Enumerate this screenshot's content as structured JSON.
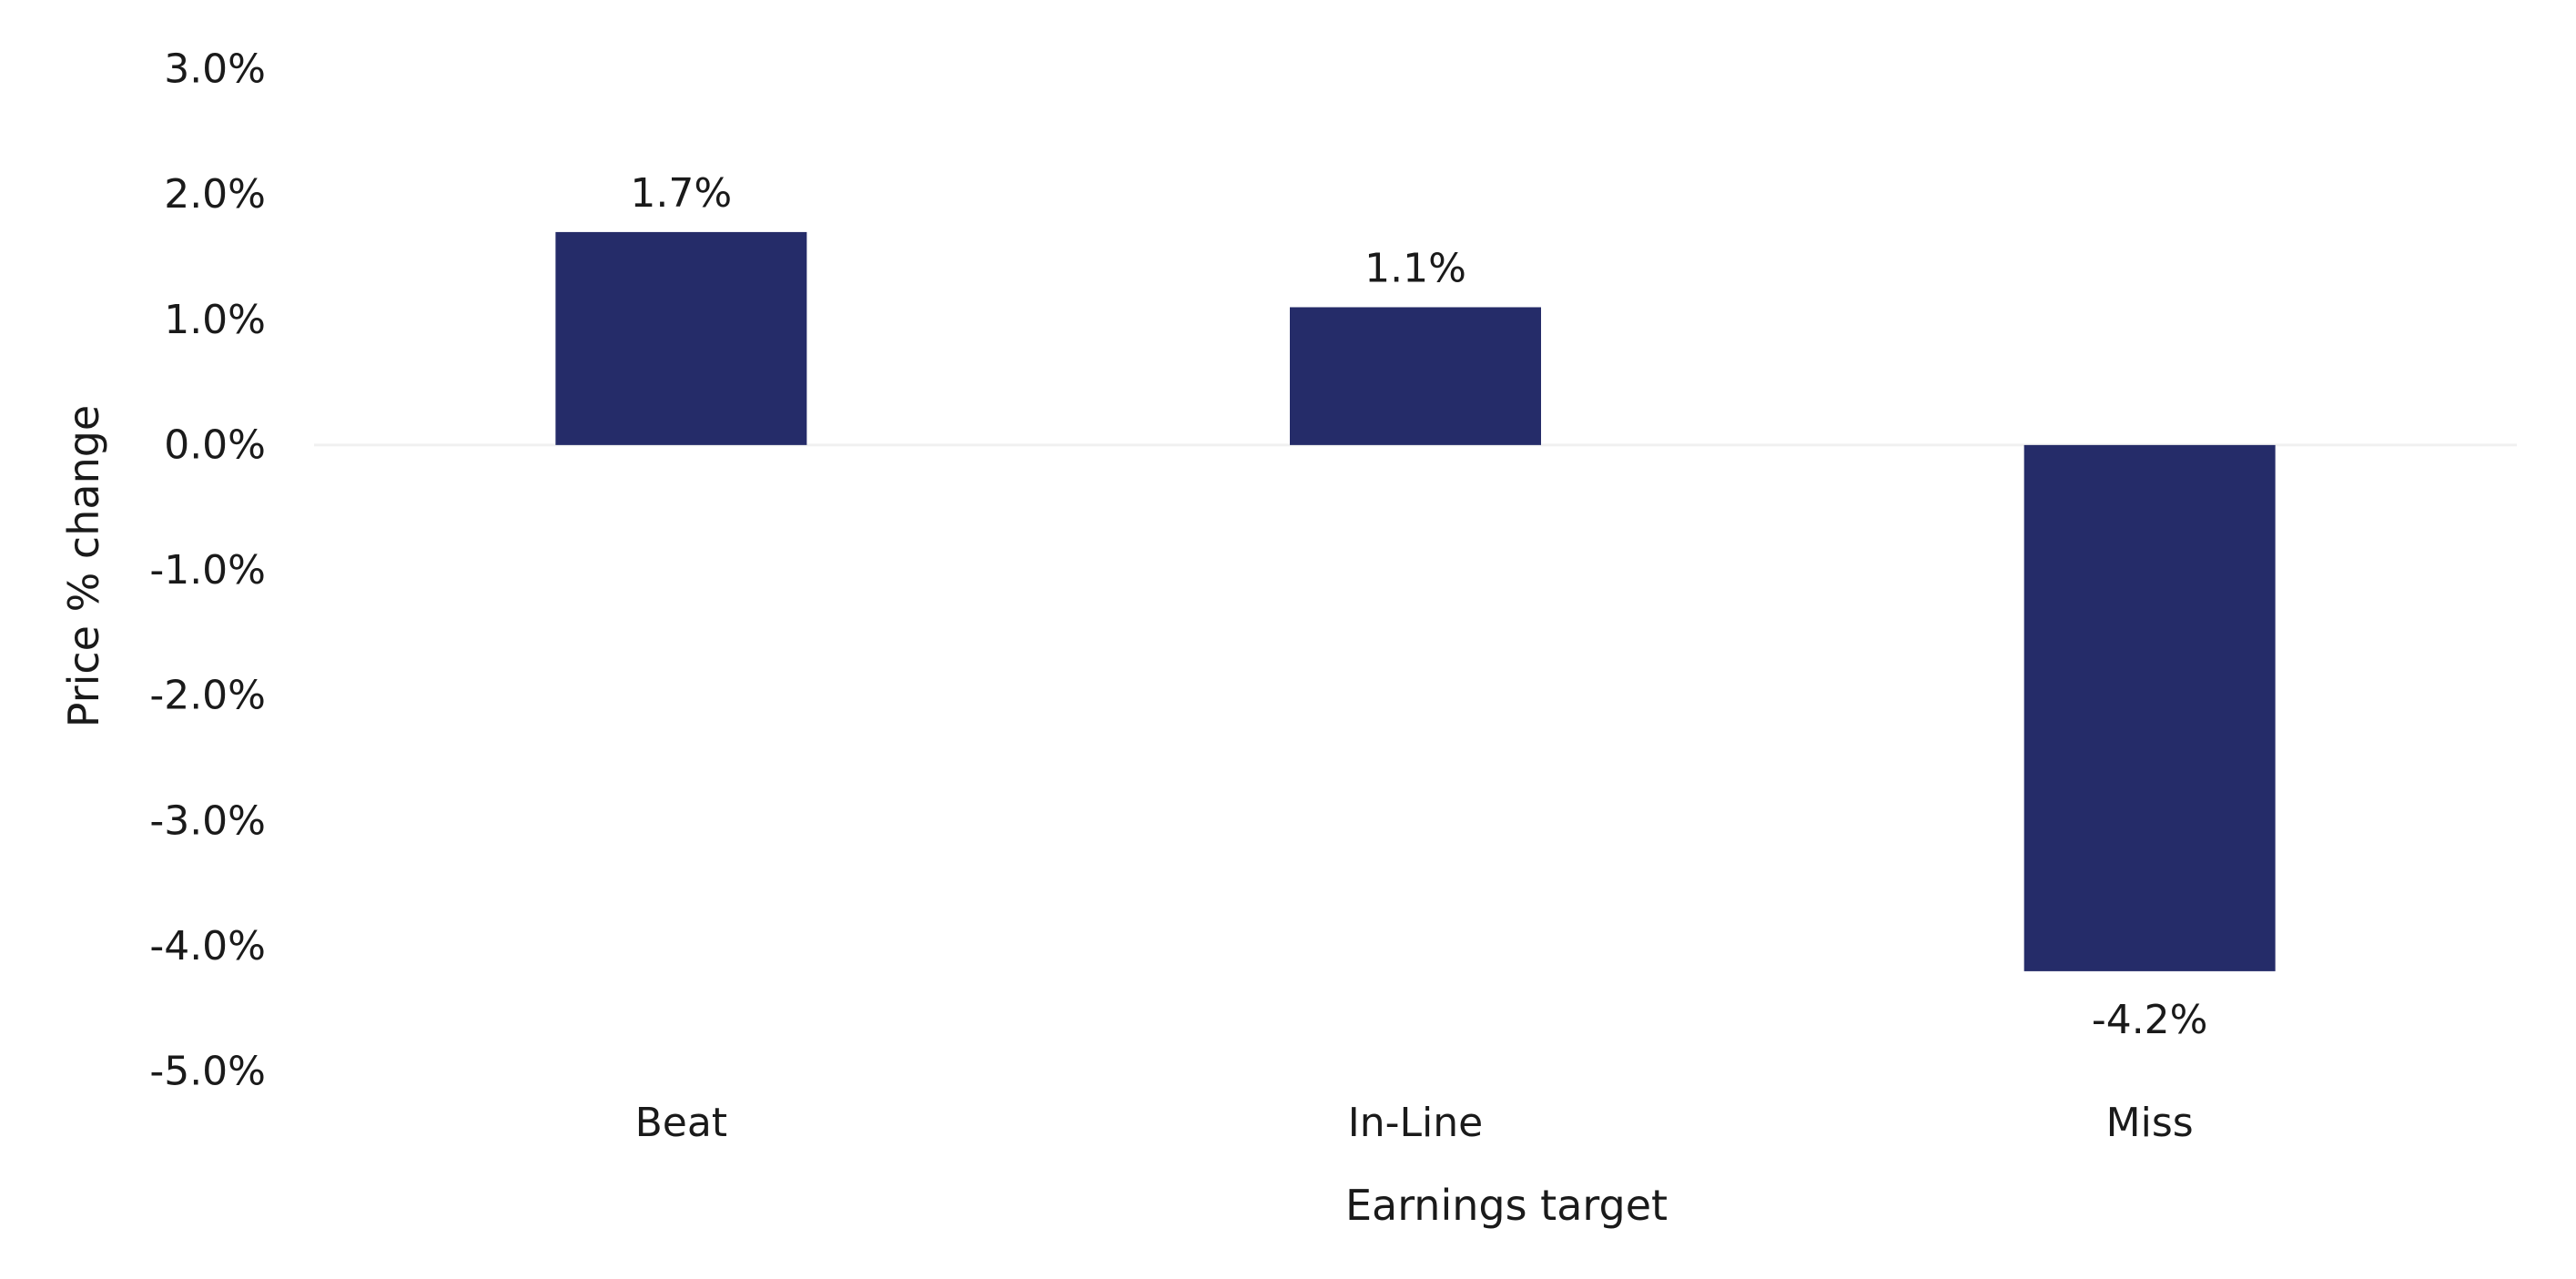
{
  "chart_data": {
    "type": "bar",
    "title": "",
    "xlabel": "Earnings target",
    "ylabel": "Price % change",
    "categories": [
      "Beat",
      "In-Line",
      "Miss"
    ],
    "values": [
      1.7,
      1.1,
      -4.2
    ],
    "value_labels": [
      "1.7%",
      "1.1%",
      "-4.2%"
    ],
    "ylim": [
      -5.0,
      3.0
    ],
    "yticks": [
      3.0,
      2.0,
      1.0,
      0.0,
      -1.0,
      -2.0,
      -3.0,
      -4.0,
      -5.0
    ],
    "ytick_labels": [
      "3.0%",
      "2.0%",
      "1.0%",
      "0.0%",
      "-1.0%",
      "-2.0%",
      "-3.0%",
      "-4.0%",
      "-5.0%"
    ],
    "grid": false,
    "legend": "none",
    "bar_color": "#252c69",
    "zero_line_color": "#f0f0f0"
  }
}
